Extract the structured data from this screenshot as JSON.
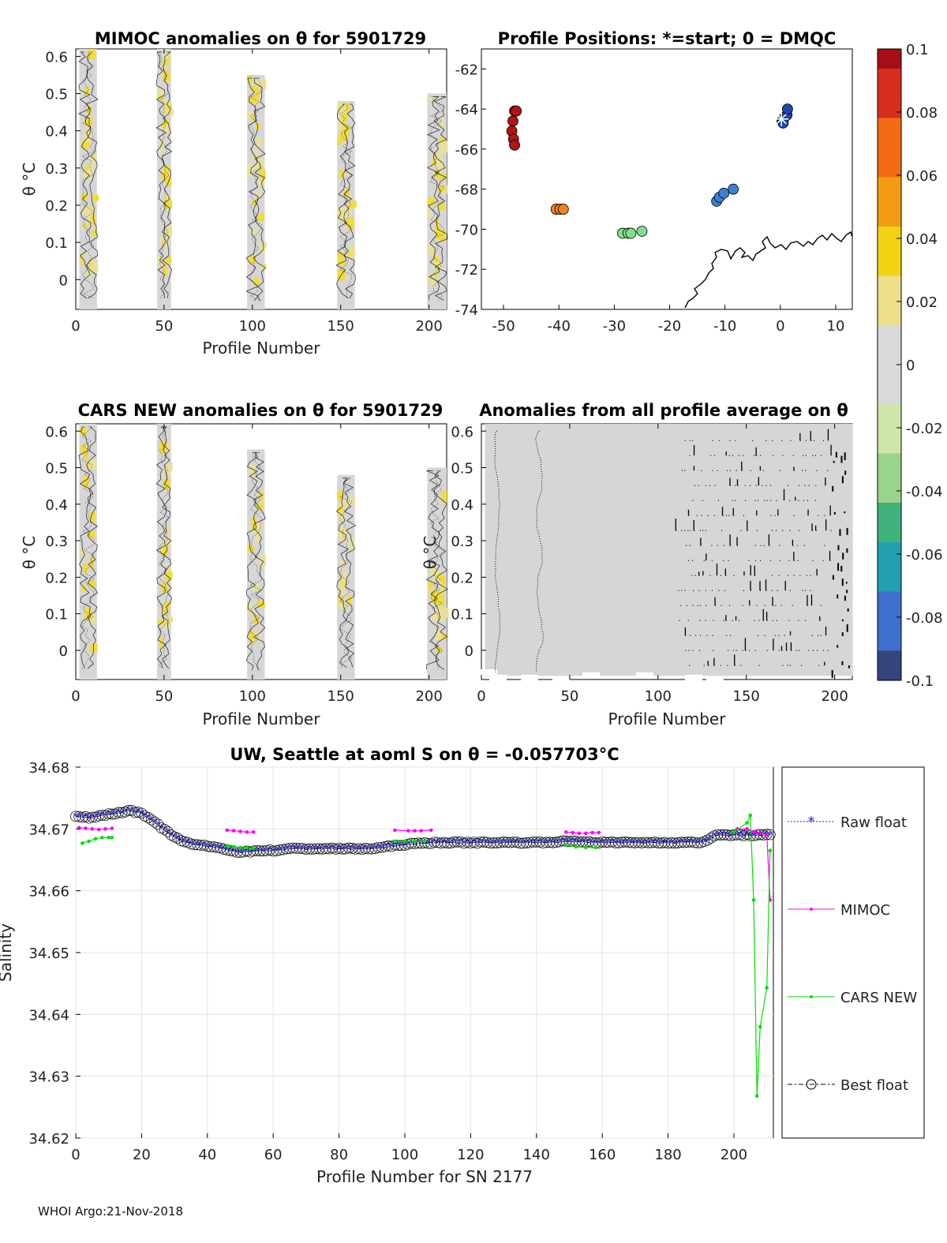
{
  "footer": "WHOI Argo:21-Nov-2018",
  "chart_data": [
    {
      "id": "mimoc",
      "type": "heatmap",
      "title": "MIMOC anomalies on θ  for 5901729",
      "xlabel": "Profile Number",
      "ylabel": "θ °C",
      "xlim": [
        0,
        210
      ],
      "ylim": [
        -0.08,
        0.62
      ],
      "xticks": [
        "0",
        "50",
        "100",
        "150",
        "200"
      ],
      "yticks": [
        "0.6",
        "0.5",
        "0.4",
        "0.3",
        "0.2",
        "0.1",
        "0"
      ],
      "profile_groups": [
        {
          "x": [
            2,
            12
          ],
          "ymax": 0.62
        },
        {
          "x": [
            46,
            54
          ],
          "ymax": 0.62
        },
        {
          "x": [
            97,
            107
          ],
          "ymax": 0.55
        },
        {
          "x": [
            148,
            158
          ],
          "ymax": 0.48
        },
        {
          "x": [
            199,
            210
          ],
          "ymax": 0.5
        }
      ]
    },
    {
      "id": "positions",
      "type": "scatter",
      "title": "Profile Positions: *=start; 0 = DMQC",
      "xlim": [
        -54,
        13
      ],
      "ylim": [
        -74,
        -61
      ],
      "xticks": [
        "-50",
        "-40",
        "-30",
        "-20",
        "-10",
        "0",
        "10"
      ],
      "yticks": [
        "-62",
        "-64",
        "-66",
        "-68",
        "-70",
        "-72",
        "-74"
      ],
      "clusters": [
        {
          "color": "#b11414",
          "points": [
            [
              -48,
              -64.1
            ],
            [
              -48.3,
              -64.6
            ],
            [
              -48.5,
              -65.1
            ],
            [
              -48.2,
              -65.5
            ],
            [
              -48,
              -65.8
            ],
            [
              -47.7,
              -64.1
            ]
          ]
        },
        {
          "color": "#f0821e",
          "points": [
            [
              -40.5,
              -69.0
            ],
            [
              -39.8,
              -69.0
            ],
            [
              -39.2,
              -69.0
            ]
          ]
        },
        {
          "color": "#7ee08a",
          "points": [
            [
              -28.5,
              -70.2
            ],
            [
              -27.5,
              -70.2
            ],
            [
              -27,
              -70.2
            ],
            [
              -25,
              -70.1
            ]
          ]
        },
        {
          "color": "#3c7fd8",
          "points": [
            [
              -11.5,
              -68.6
            ],
            [
              -11,
              -68.4
            ],
            [
              -10.2,
              -68.2
            ],
            [
              -8.5,
              -68.0
            ]
          ]
        },
        {
          "color": "#1e46aa",
          "points": [
            [
              0.3,
              -64.6
            ],
            [
              0.8,
              -64.4
            ],
            [
              1.2,
              -64.3
            ],
            [
              1.3,
              -64.0
            ],
            [
              0.5,
              -64.7
            ]
          ]
        }
      ],
      "start": [
        0.2,
        -64.5
      ]
    },
    {
      "id": "colorbar",
      "type": "colorbar",
      "range": [
        -0.1,
        0.1
      ],
      "ticks": [
        "0.1",
        "0.08",
        "0.06",
        "0.04",
        "0.02",
        "0",
        "-0.02",
        "-0.04",
        "-0.06",
        "-0.08",
        "-0.1"
      ]
    },
    {
      "id": "cars",
      "type": "heatmap",
      "title": "CARS NEW anomalies on θ for 5901729",
      "xlabel": "Profile Number",
      "ylabel": "θ °C",
      "xlim": [
        0,
        210
      ],
      "ylim": [
        -0.08,
        0.62
      ],
      "xticks": [
        "0",
        "50",
        "100",
        "150",
        "200"
      ],
      "yticks": [
        "0.6",
        "0.5",
        "0.4",
        "0.3",
        "0.2",
        "0.1",
        "0"
      ]
    },
    {
      "id": "allavg",
      "type": "heatmap",
      "title": "Anomalies from all profile average on θ",
      "xlabel": "Profile Number",
      "ylabel": "θ °C",
      "xlim": [
        0,
        210
      ],
      "ylim": [
        -0.08,
        0.62
      ],
      "xticks": [
        "0",
        "50",
        "100",
        "150",
        "200"
      ],
      "yticks": [
        "0.6",
        "0.5",
        "0.4",
        "0.3",
        "0.2",
        "0.1",
        "0"
      ]
    },
    {
      "id": "salinity",
      "type": "line",
      "title": "UW, Seattle at aoml S on θ = -0.057703°C",
      "xlabel": "Profile Number for SN 2177",
      "ylabel": "Salinity",
      "xlim": [
        0,
        212
      ],
      "ylim": [
        34.62,
        34.68
      ],
      "xticks": [
        "0",
        "20",
        "40",
        "60",
        "80",
        "100",
        "120",
        "140",
        "160",
        "180",
        "200"
      ],
      "yticks": [
        "34.68",
        "34.67",
        "34.66",
        "34.65",
        "34.64",
        "34.63",
        "34.62"
      ],
      "legend": [
        "Raw float",
        "MIMOC",
        "CARS NEW",
        "Best float"
      ],
      "series": [
        {
          "name": "Raw float / Best float",
          "x": [
            0,
            4,
            8,
            12,
            16,
            20,
            24,
            28,
            32,
            36,
            40,
            45,
            50,
            55,
            60,
            65,
            70,
            80,
            90,
            100,
            110,
            120,
            130,
            140,
            150,
            160,
            170,
            180,
            190,
            195,
            200,
            205,
            210
          ],
          "y": [
            34.672,
            34.6718,
            34.6722,
            34.6725,
            34.673,
            34.6725,
            34.671,
            34.6695,
            34.668,
            34.6675,
            34.6672,
            34.6668,
            34.6662,
            34.6665,
            34.6665,
            34.6668,
            34.6668,
            34.6668,
            34.6668,
            34.6675,
            34.6678,
            34.6678,
            34.6678,
            34.6678,
            34.668,
            34.6678,
            34.6678,
            34.6678,
            34.6678,
            34.669,
            34.669,
            34.669,
            34.669
          ]
        },
        {
          "name": "MIMOC",
          "segments": [
            {
              "x": [
                1,
                3,
                5,
                7,
                9,
                11
              ],
              "y": [
                34.6702,
                34.6701,
                34.67,
                34.6699,
                34.67,
                34.6701
              ]
            },
            {
              "x": [
                46,
                48,
                50,
                52,
                54
              ],
              "y": [
                34.6698,
                34.6697,
                34.6696,
                34.6695,
                34.6695
              ]
            },
            {
              "x": [
                97,
                101,
                103,
                105,
                108
              ],
              "y": [
                34.6698,
                34.6697,
                34.6697,
                34.6697,
                34.6698
              ]
            },
            {
              "x": [
                149,
                151,
                153,
                155,
                157,
                159
              ],
              "y": [
                34.6695,
                34.6694,
                34.6693,
                34.6693,
                34.6694,
                34.6694
              ]
            },
            {
              "x": [
                201,
                204,
                206,
                208,
                210,
                211
              ],
              "y": [
                34.67,
                34.67,
                34.6695,
                34.6693,
                34.6691,
                34.6585
              ]
            }
          ]
        },
        {
          "name": "CARS NEW",
          "segments": [
            {
              "x": [
                2,
                4,
                6,
                8,
                10,
                11
              ],
              "y": [
                34.6677,
                34.668,
                34.6684,
                34.6686,
                34.6686,
                34.6686
              ]
            },
            {
              "x": [
                46,
                48,
                50,
                52,
                54
              ],
              "y": [
                34.6673,
                34.6671,
                34.667,
                34.667,
                34.6669
              ]
            },
            {
              "x": [
                97,
                100,
                103,
                106
              ],
              "y": [
                34.668,
                34.668,
                34.668,
                34.668
              ]
            },
            {
              "x": [
                149,
                152,
                155,
                158
              ],
              "y": [
                34.6674,
                34.6671,
                34.667,
                34.667
              ]
            },
            {
              "x": [
                200,
                204,
                205,
                206,
                207,
                208,
                210,
                211
              ],
              "y": [
                34.6695,
                34.671,
                34.6722,
                34.6585,
                34.6268,
                34.638,
                34.6443,
                34.6665
              ]
            }
          ]
        }
      ]
    }
  ]
}
